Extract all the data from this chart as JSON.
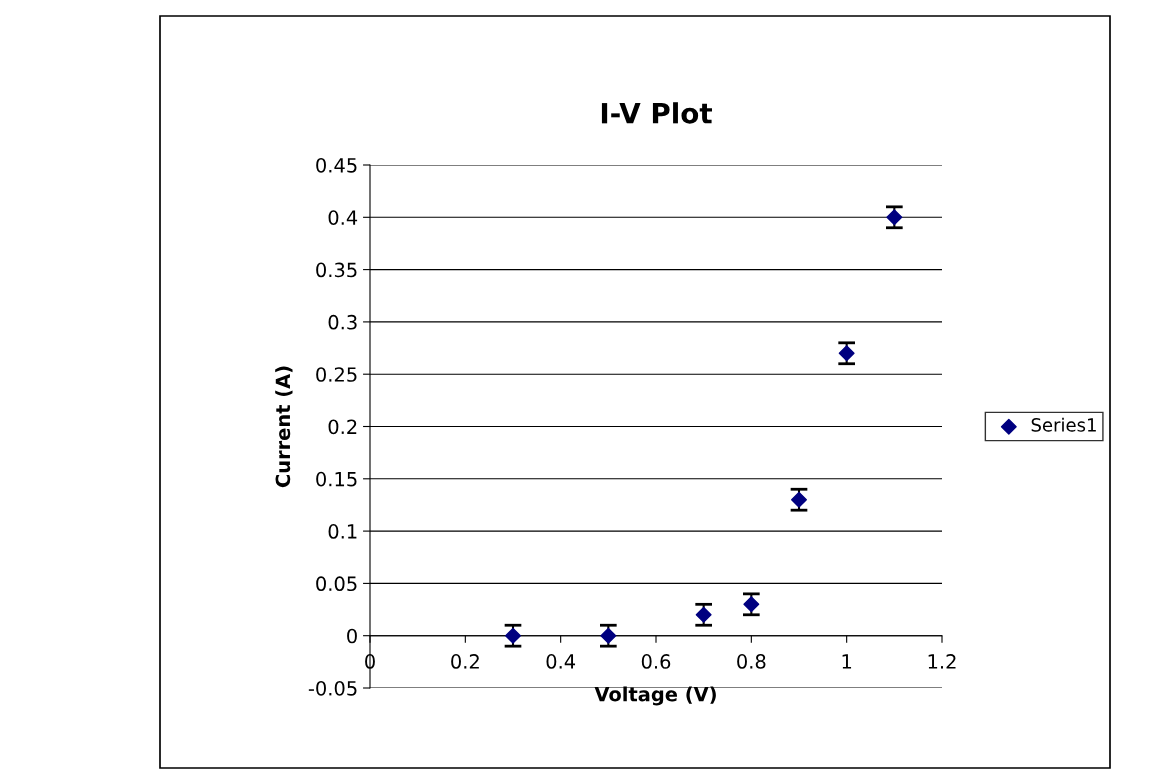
{
  "chart_data": {
    "type": "scatter",
    "title": "I-V Plot",
    "xlabel": "Voltage (V)",
    "ylabel": "Current (A)",
    "x": [
      0.3,
      0.5,
      0.7,
      0.8,
      0.9,
      1.0,
      1.1
    ],
    "series": [
      {
        "name": "Series1",
        "color": "#000080",
        "values": [
          0,
          0,
          0.02,
          0.03,
          0.13,
          0.27,
          0.4
        ],
        "errors": [
          0.01,
          0.01,
          0.01,
          0.01,
          0.01,
          0.01,
          0.01
        ]
      }
    ],
    "xlim": [
      0,
      1.2
    ],
    "xticks": [
      0,
      0.2,
      0.4,
      0.6,
      0.8,
      1,
      1.2
    ],
    "ylim": [
      -0.05,
      0.45
    ],
    "yticks": [
      -0.05,
      0,
      0.05,
      0.1,
      0.15,
      0.2,
      0.25,
      0.3,
      0.35,
      0.4,
      0.45
    ],
    "grid": "y",
    "legend": "right",
    "marker": "diamond"
  }
}
